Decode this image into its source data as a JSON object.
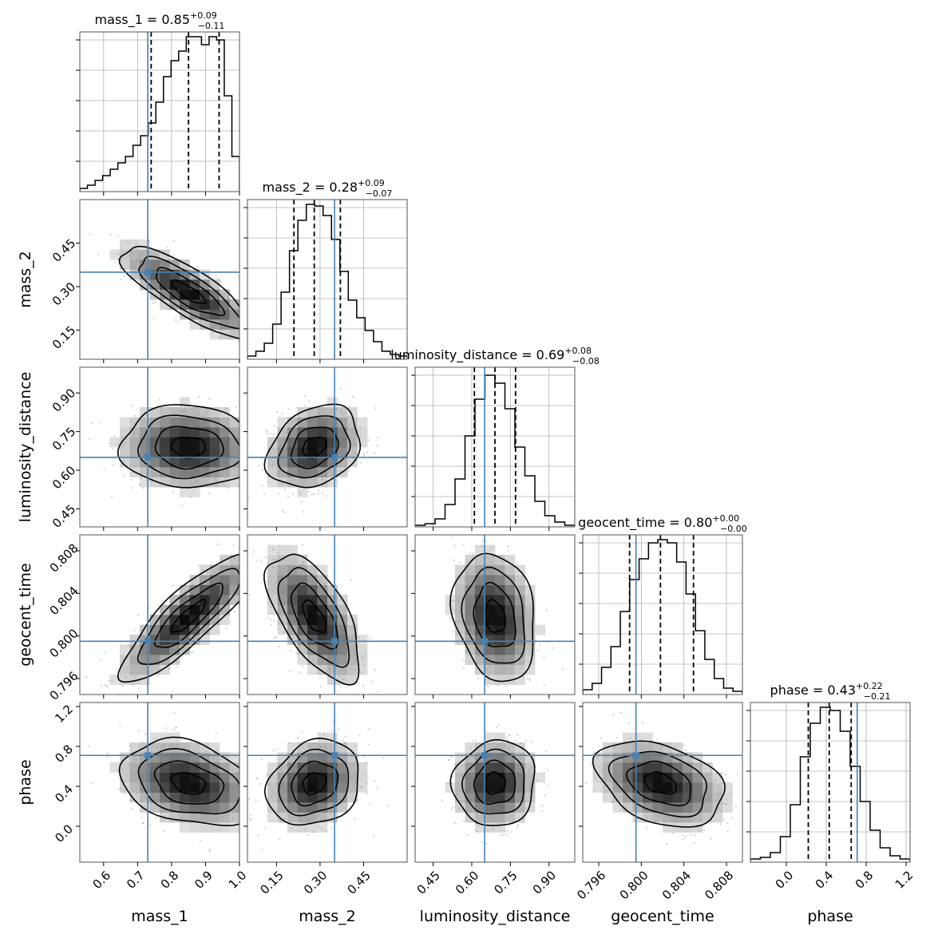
{
  "chart_data": {
    "type": "corner",
    "parameters": [
      {
        "name": "mass_1",
        "label": "mass_1",
        "range": [
          0.53,
          1.0
        ],
        "ticks": [
          0.6,
          0.7,
          0.8,
          0.9,
          1.0
        ],
        "tick_labels": [
          "0.6",
          "0.7",
          "0.8",
          "0.9",
          "1.0"
        ],
        "truth": 0.73,
        "summary": {
          "median": "0.85",
          "plus": "+0.09",
          "minus": "−0.11"
        },
        "quantiles": [
          0.74,
          0.85,
          0.94
        ],
        "hist": [
          0.02,
          0.04,
          0.07,
          0.1,
          0.14,
          0.18,
          0.22,
          0.29,
          0.35,
          0.43,
          0.56,
          0.72,
          0.82,
          0.88,
          0.97,
          0.97,
          0.92,
          0.97,
          0.95,
          0.6,
          0.22
        ]
      },
      {
        "name": "mass_2",
        "label": "mass_2",
        "range": [
          0.05,
          0.6
        ],
        "ticks": [
          0.15,
          0.3,
          0.45
        ],
        "tick_labels": [
          "0.15",
          "0.30",
          "0.45"
        ],
        "truth": 0.35,
        "summary": {
          "median": "0.28",
          "plus": "+0.09",
          "minus": "−0.07"
        },
        "quantiles": [
          0.21,
          0.28,
          0.37
        ],
        "hist": [
          0.02,
          0.05,
          0.1,
          0.22,
          0.42,
          0.68,
          0.87,
          0.97,
          0.96,
          0.9,
          0.75,
          0.55,
          0.37,
          0.26,
          0.18,
          0.11,
          0.05,
          0.03,
          0.02
        ]
      },
      {
        "name": "luminosity_distance",
        "label": "luminosity_distance",
        "range": [
          0.38,
          1.0
        ],
        "ticks": [
          0.45,
          0.6,
          0.75,
          0.9
        ],
        "tick_labels": [
          "0.45",
          "0.60",
          "0.75",
          "0.90"
        ],
        "truth": 0.65,
        "summary": {
          "median": "0.69",
          "plus": "+0.08",
          "minus": "−0.08"
        },
        "quantiles": [
          0.61,
          0.69,
          0.77
        ],
        "hist": [
          0.01,
          0.02,
          0.05,
          0.14,
          0.3,
          0.57,
          0.8,
          0.95,
          0.9,
          0.74,
          0.5,
          0.32,
          0.16,
          0.07,
          0.03,
          0.01
        ]
      },
      {
        "name": "geocent_time",
        "label": "geocent_time",
        "range": [
          0.7945,
          0.8095
        ],
        "ticks": [
          0.796,
          0.8,
          0.804,
          0.808
        ],
        "tick_labels": [
          "0.796",
          "0.800",
          "0.804",
          "0.808"
        ],
        "truth": 0.7995,
        "summary": {
          "median": "0.80",
          "plus": "+0.00",
          "minus": "−0.00"
        },
        "quantiles": [
          0.7989,
          0.8018,
          0.8049
        ],
        "hist": [
          0.03,
          0.07,
          0.17,
          0.3,
          0.52,
          0.72,
          0.85,
          0.95,
          0.97,
          0.95,
          0.83,
          0.63,
          0.4,
          0.22,
          0.1,
          0.04,
          0.02
        ]
      },
      {
        "name": "phase",
        "label": "phase",
        "range": [
          -0.36,
          1.24
        ],
        "ticks": [
          0.0,
          0.4,
          0.8,
          1.2
        ],
        "tick_labels": [
          "0.0",
          "0.4",
          "0.8",
          "1.2"
        ],
        "truth": 0.71,
        "summary": {
          "median": "0.43",
          "plus": "+0.22",
          "minus": "−0.21"
        },
        "quantiles": [
          0.22,
          0.43,
          0.65
        ],
        "hist": [
          0.02,
          0.03,
          0.06,
          0.16,
          0.36,
          0.66,
          0.87,
          0.97,
          0.95,
          0.82,
          0.6,
          0.38,
          0.2,
          0.09,
          0.04,
          0.02
        ]
      }
    ],
    "correlations": [
      [
        1,
        -0.82,
        -0.05,
        0.85,
        -0.3
      ],
      [
        -0.82,
        1,
        0.28,
        -0.62,
        0.2
      ],
      [
        -0.05,
        0.28,
        1,
        -0.2,
        0.05
      ],
      [
        0.85,
        -0.62,
        -0.2,
        1,
        -0.35
      ],
      [
        -0.3,
        0.2,
        0.05,
        -0.35,
        1
      ]
    ],
    "truth_color": "#4682b4",
    "grid": true
  }
}
